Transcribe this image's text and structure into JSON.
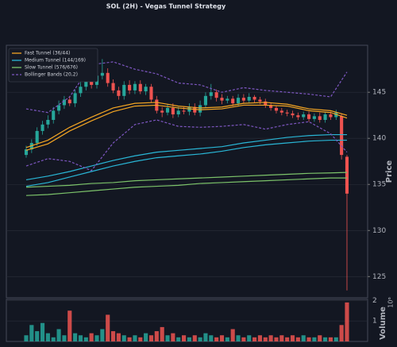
{
  "chart_data": [
    {
      "type": "candlestick",
      "title": "SOL (2H) - Vegas Tunnel Strategy",
      "ylabel": "Price",
      "up_color": "#26a69a",
      "down_color": "#ef5350",
      "open": [
        138.2,
        138.8,
        139.5,
        140.8,
        141.5,
        142.0,
        143.0,
        143.6,
        144.2,
        143.8,
        144.9,
        145.6,
        146.3,
        145.8,
        146.8,
        147.1,
        146.0,
        145.2,
        144.6,
        145.8,
        145.2,
        145.9,
        145.1,
        145.6,
        144.2,
        143.0,
        142.8,
        143.3,
        142.6,
        143.0,
        142.9,
        143.4,
        142.8,
        143.6,
        144.6,
        145.0,
        144.4,
        144.1,
        144.3,
        143.8,
        144.4,
        144.1,
        144.5,
        144.2,
        144.0,
        143.6,
        143.3,
        143.0,
        142.8,
        142.7,
        142.5,
        142.3,
        142.6,
        142.1,
        142.4,
        142.0,
        142.6,
        142.3,
        142.4,
        138.0
      ],
      "high": [
        139.2,
        139.9,
        141.2,
        141.9,
        142.5,
        143.4,
        144.1,
        144.6,
        144.6,
        145.3,
        146.1,
        146.7,
        146.8,
        147.3,
        148.6,
        147.6,
        146.4,
        145.6,
        146.2,
        146.3,
        146.2,
        146.3,
        145.9,
        145.9,
        144.6,
        143.4,
        143.7,
        143.8,
        143.4,
        143.4,
        143.8,
        143.8,
        144.1,
        145.0,
        145.9,
        145.3,
        144.8,
        144.6,
        144.6,
        144.8,
        144.8,
        144.9,
        144.7,
        144.5,
        144.3,
        143.9,
        143.6,
        143.3,
        143.1,
        143.0,
        142.8,
        142.9,
        142.9,
        142.7,
        142.8,
        142.9,
        142.9,
        143.1,
        142.7,
        138.2
      ],
      "low": [
        137.9,
        138.4,
        139.2,
        140.4,
        141.1,
        141.6,
        142.6,
        143.2,
        143.5,
        143.4,
        144.5,
        145.2,
        145.4,
        145.4,
        146.4,
        145.6,
        144.9,
        144.2,
        144.2,
        144.8,
        144.8,
        144.8,
        144.7,
        143.9,
        142.7,
        142.3,
        142.5,
        142.2,
        142.3,
        142.6,
        142.5,
        142.5,
        142.4,
        143.3,
        144.2,
        144.0,
        143.7,
        143.8,
        143.5,
        143.5,
        143.8,
        143.8,
        143.9,
        143.7,
        143.3,
        143.0,
        142.7,
        142.5,
        142.4,
        142.2,
        142.0,
        142.0,
        141.8,
        141.8,
        141.7,
        141.7,
        142.0,
        142.0,
        137.7,
        123.5
      ],
      "close": [
        138.8,
        139.5,
        140.8,
        141.5,
        142.0,
        143.0,
        143.6,
        144.2,
        143.8,
        144.9,
        145.6,
        146.3,
        145.8,
        146.8,
        147.1,
        146.0,
        145.2,
        144.6,
        145.8,
        145.2,
        145.9,
        145.1,
        145.6,
        144.2,
        143.0,
        142.8,
        143.3,
        142.6,
        143.0,
        142.9,
        143.4,
        142.8,
        143.6,
        144.6,
        145.0,
        144.4,
        144.1,
        144.3,
        143.8,
        144.4,
        144.1,
        144.5,
        144.2,
        144.0,
        143.6,
        143.3,
        143.0,
        142.8,
        142.7,
        142.5,
        142.3,
        142.6,
        142.1,
        142.4,
        142.0,
        142.6,
        142.3,
        142.8,
        138.2,
        134.0
      ],
      "series": [
        {
          "name": "Fast Tunnel (36/44)",
          "color": "#f5a623",
          "x": [
            0,
            4,
            8,
            12,
            16,
            20,
            24,
            28,
            32,
            36,
            40,
            44,
            48,
            52,
            56,
            59
          ],
          "values": [
            139.0,
            139.8,
            141.2,
            142.3,
            143.3,
            143.8,
            143.9,
            143.5,
            143.3,
            143.4,
            143.8,
            143.9,
            143.7,
            143.2,
            143.0,
            142.5
          ]
        },
        {
          "name": null,
          "color": "#f5a623",
          "x": [
            0,
            4,
            8,
            12,
            16,
            20,
            24,
            28,
            32,
            36,
            40,
            44,
            48,
            52,
            56,
            59
          ],
          "values": [
            138.7,
            139.4,
            140.8,
            141.9,
            142.9,
            143.5,
            143.6,
            143.3,
            143.1,
            143.2,
            143.6,
            143.6,
            143.5,
            143.0,
            142.8,
            142.2
          ]
        },
        {
          "name": "Medium Tunnel (144/169)",
          "color": "#29b6d6",
          "x": [
            0,
            4,
            8,
            12,
            16,
            20,
            24,
            28,
            32,
            36,
            40,
            44,
            48,
            52,
            56,
            59
          ],
          "values": [
            135.5,
            135.9,
            136.4,
            137.0,
            137.6,
            138.1,
            138.5,
            138.7,
            138.9,
            139.1,
            139.5,
            139.8,
            140.1,
            140.3,
            140.4,
            140.4
          ]
        },
        {
          "name": null,
          "color": "#29b6d6",
          "x": [
            0,
            4,
            8,
            12,
            16,
            20,
            24,
            28,
            32,
            36,
            40,
            44,
            48,
            52,
            56,
            59
          ],
          "values": [
            134.8,
            135.2,
            135.8,
            136.4,
            137.0,
            137.5,
            137.9,
            138.1,
            138.3,
            138.6,
            139.0,
            139.3,
            139.5,
            139.7,
            139.8,
            139.8
          ]
        },
        {
          "name": "Slow Tunnel (576/676)",
          "color": "#7cc36a",
          "x": [
            0,
            4,
            8,
            12,
            16,
            20,
            24,
            28,
            32,
            36,
            40,
            44,
            48,
            52,
            56,
            59
          ],
          "values": [
            134.7,
            134.8,
            134.9,
            135.1,
            135.2,
            135.4,
            135.5,
            135.6,
            135.7,
            135.8,
            135.9,
            136.0,
            136.1,
            136.2,
            136.25,
            136.3
          ]
        },
        {
          "name": null,
          "color": "#7cc36a",
          "x": [
            0,
            4,
            8,
            12,
            16,
            20,
            24,
            28,
            32,
            36,
            40,
            44,
            48,
            52,
            56,
            59
          ],
          "values": [
            133.8,
            133.9,
            134.1,
            134.3,
            134.5,
            134.7,
            134.8,
            134.9,
            135.1,
            135.2,
            135.3,
            135.4,
            135.5,
            135.6,
            135.7,
            135.7
          ]
        },
        {
          "name": "Bollinger Bands (20,2)",
          "color": "#7e57c2",
          "dashed": true,
          "x": [
            0,
            4,
            8,
            12,
            16,
            20,
            24,
            28,
            32,
            36,
            40,
            44,
            48,
            52,
            56,
            59
          ],
          "values": [
            143.2,
            142.8,
            144.5,
            148.0,
            148.3,
            147.5,
            147.0,
            146.0,
            145.8,
            145.0,
            145.5,
            145.2,
            145.0,
            144.8,
            144.5,
            147.2
          ]
        },
        {
          "name": null,
          "color": "#7e57c2",
          "dashed": true,
          "x": [
            0,
            4,
            8,
            12,
            16,
            20,
            24,
            28,
            32,
            36,
            40,
            44,
            48,
            52,
            56,
            59
          ],
          "values": [
            137.0,
            137.8,
            137.5,
            136.5,
            139.5,
            141.5,
            142.0,
            141.3,
            141.2,
            141.3,
            141.5,
            141.0,
            141.5,
            141.8,
            140.5,
            138.5
          ]
        }
      ],
      "xlim": [
        -3.65,
        62.8
      ],
      "ylim": [
        122.7,
        150.1
      ],
      "yticks": [
        125,
        130,
        135,
        140,
        145
      ],
      "grid": true,
      "legend": "upper left"
    },
    {
      "type": "bar",
      "ylabel": "Volume",
      "offset_label": "10⁶",
      "values": [
        0.3,
        0.8,
        0.5,
        0.9,
        0.4,
        0.2,
        0.6,
        0.3,
        1.5,
        0.4,
        0.3,
        0.2,
        0.4,
        0.3,
        0.6,
        1.3,
        0.5,
        0.4,
        0.3,
        0.2,
        0.3,
        0.2,
        0.4,
        0.3,
        0.5,
        0.7,
        0.3,
        0.4,
        0.2,
        0.3,
        0.2,
        0.3,
        0.2,
        0.4,
        0.3,
        0.2,
        0.3,
        0.2,
        0.6,
        0.3,
        0.2,
        0.3,
        0.2,
        0.3,
        0.2,
        0.3,
        0.2,
        0.3,
        0.2,
        0.3,
        0.2,
        0.3,
        0.2,
        0.2,
        0.3,
        0.2,
        0.2,
        0.2,
        0.8,
        1.9
      ],
      "ylim": [
        0,
        2.05
      ],
      "yticks": [
        1,
        2
      ]
    }
  ]
}
